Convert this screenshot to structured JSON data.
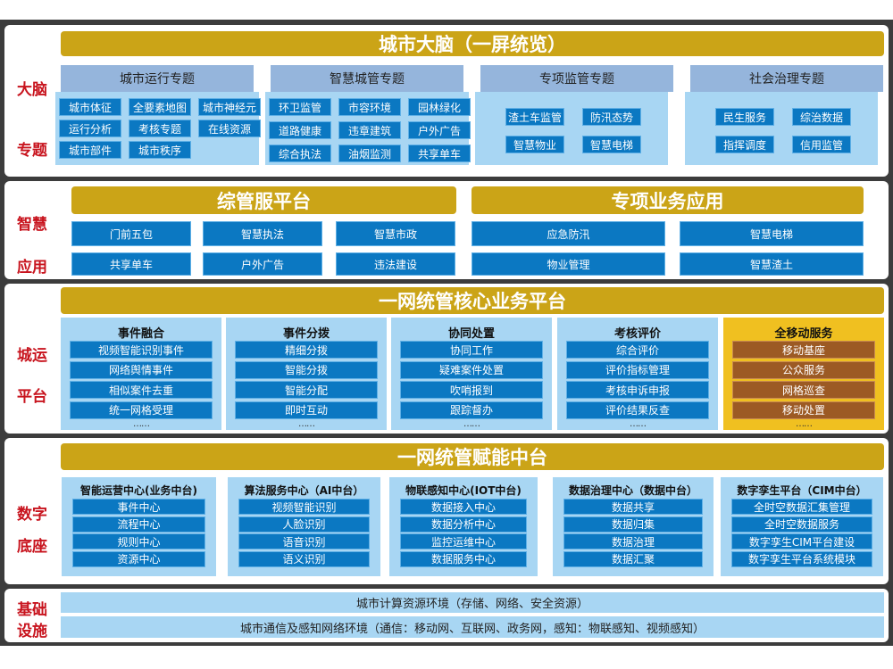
{
  "colors": {
    "gold": "#cba417",
    "label_red": "#c8141e",
    "item_blue": "#0b78c2",
    "light_blue": "#a8d6f3",
    "header_blue": "#95b5dc",
    "mobile_gold": "#f0c020",
    "mobile_item_brown": "#9c5a24"
  },
  "brain": {
    "side": [
      "大脑",
      "专题"
    ],
    "title": "城市大脑（一屏统览）",
    "groups": [
      {
        "title": "城市运行专题",
        "items": [
          "城市体征",
          "全要素地图",
          "城市神经元",
          "运行分析",
          "考核专题",
          "在线资源",
          "城市部件",
          "城市秩序"
        ]
      },
      {
        "title": "智慧城管专题",
        "items": [
          "环卫监管",
          "市容环境",
          "园林绿化",
          "道路健康",
          "违章建筑",
          "户外广告",
          "综合执法",
          "油烟监测",
          "共享单车"
        ]
      },
      {
        "title": "专项监管专题",
        "items": [
          "渣土车监管",
          "防汛态势",
          "智慧物业",
          "智慧电梯"
        ]
      },
      {
        "title": "社会治理专题",
        "items": [
          "民生服务",
          "综治数据",
          "指挥调度",
          "信用监管"
        ]
      }
    ]
  },
  "apps": {
    "side": [
      "智慧",
      "应用"
    ],
    "left": {
      "title": "综管服平台",
      "items": [
        "门前五包",
        "智慧执法",
        "智慧市政",
        "共享单车",
        "户外广告",
        "违法建设"
      ]
    },
    "right": {
      "title": "专项业务应用",
      "items": [
        "应急防汛",
        "智慧电梯",
        "物业管理",
        "智慧渣土"
      ]
    }
  },
  "ops": {
    "side": [
      "城运",
      "平台"
    ],
    "title": "一网统管核心业务平台",
    "columns": [
      {
        "title": "事件融合",
        "items": [
          "视频智能识别事件",
          "网络舆情事件",
          "相似案件去重",
          "统一网格受理"
        ],
        "more": "……"
      },
      {
        "title": "事件分拨",
        "items": [
          "精细分拨",
          "智能分拨",
          "智能分配",
          "即时互动"
        ],
        "more": "……"
      },
      {
        "title": "协同处置",
        "items": [
          "协同工作",
          "疑难案件处置",
          "吹哨报到",
          "跟踪督办"
        ],
        "more": "……"
      },
      {
        "title": "考核评价",
        "items": [
          "综合评价",
          "评价指标管理",
          "考核申诉申报",
          "评价结果反查"
        ],
        "more": "……"
      },
      {
        "title": "全移动服务",
        "items": [
          "移动基座",
          "公众服务",
          "网格巡查",
          "移动处置"
        ],
        "more": "……"
      }
    ]
  },
  "base": {
    "side": [
      "数字",
      "底座"
    ],
    "title": "一网统管赋能中台",
    "columns": [
      {
        "title": "智能运营中心(业务中台)",
        "items": [
          "事件中心",
          "流程中心",
          "规则中心",
          "资源中心"
        ]
      },
      {
        "title": "算法服务中心（AI中台）",
        "items": [
          "视频智能识别",
          "人脸识别",
          "语音识别",
          "语义识别"
        ]
      },
      {
        "title": "物联感知中心(IOT中台)",
        "items": [
          "数据接入中心",
          "数据分析中心",
          "监控运维中心",
          "数据服务中心"
        ]
      },
      {
        "title": "数据治理中心（数据中台）",
        "items": [
          "数据共享",
          "数据归集",
          "数据治理",
          "数据汇聚"
        ]
      },
      {
        "title": "数字孪生平台（CIM中台）",
        "items": [
          "全时空数据汇集管理",
          "全时空数据服务",
          "数字孪生CIM平台建设",
          "数字孪生平台系统模块"
        ]
      }
    ]
  },
  "infra": {
    "side": [
      "基础",
      "设施"
    ],
    "rows": [
      "城市计算资源环境（存储、网络、安全资源）",
      "城市通信及感知网络环境（通信：移动网、互联网、政务网，感知：物联感知、视频感知）"
    ]
  }
}
